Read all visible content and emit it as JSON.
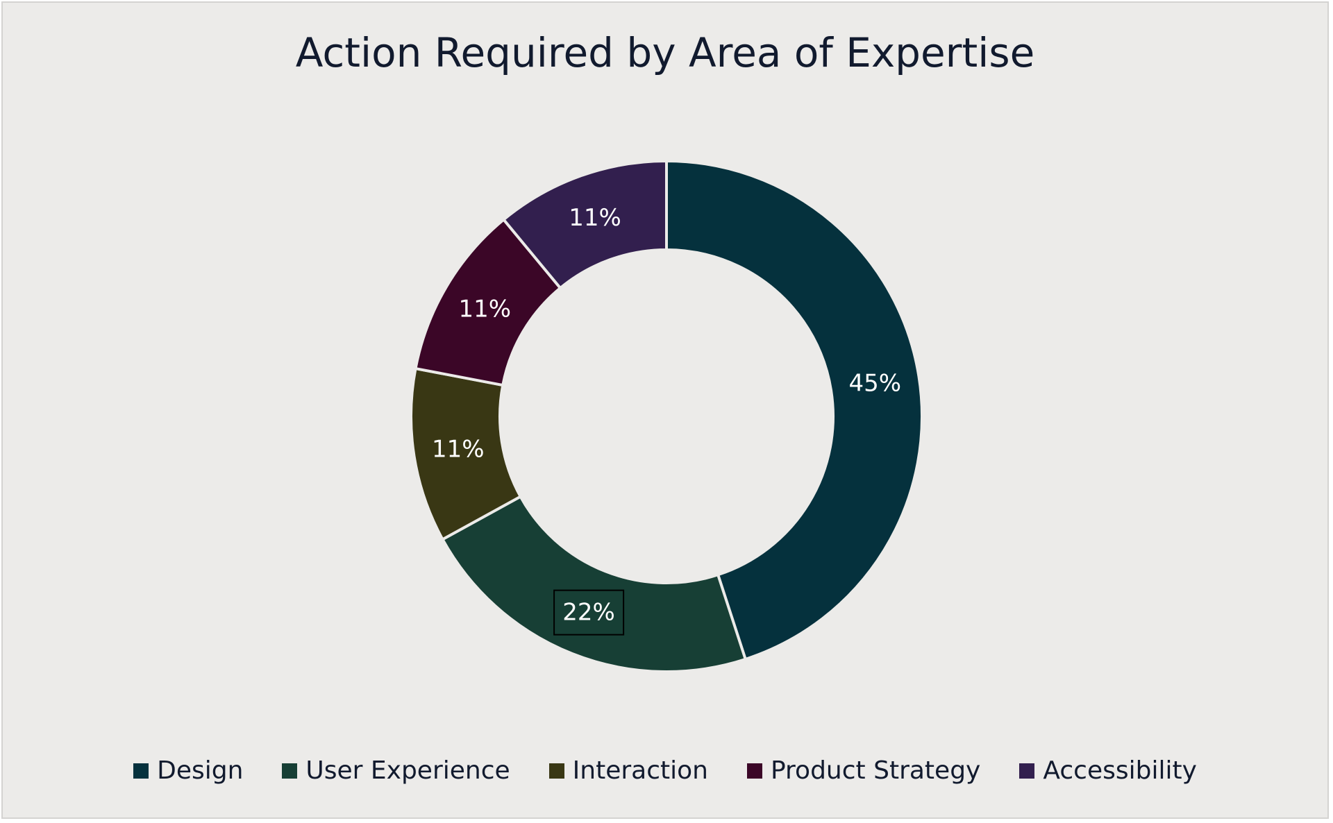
{
  "chart_data": {
    "type": "pie",
    "variant": "donut",
    "title": "Action Required by Area of Expertise",
    "categories": [
      "Design",
      "User Experience",
      "Interaction",
      "Product Strategy",
      "Accessibility"
    ],
    "values": [
      45,
      22,
      11,
      11,
      11
    ],
    "labels": [
      "45%",
      "22%",
      "11%",
      "11%",
      "11%"
    ],
    "colors": [
      "#05313d",
      "#173f35",
      "#393714",
      "#3b0627",
      "#321f4e"
    ],
    "legend_position": "bottom",
    "start_angle": "12 o'clock",
    "direction": "clockwise"
  }
}
